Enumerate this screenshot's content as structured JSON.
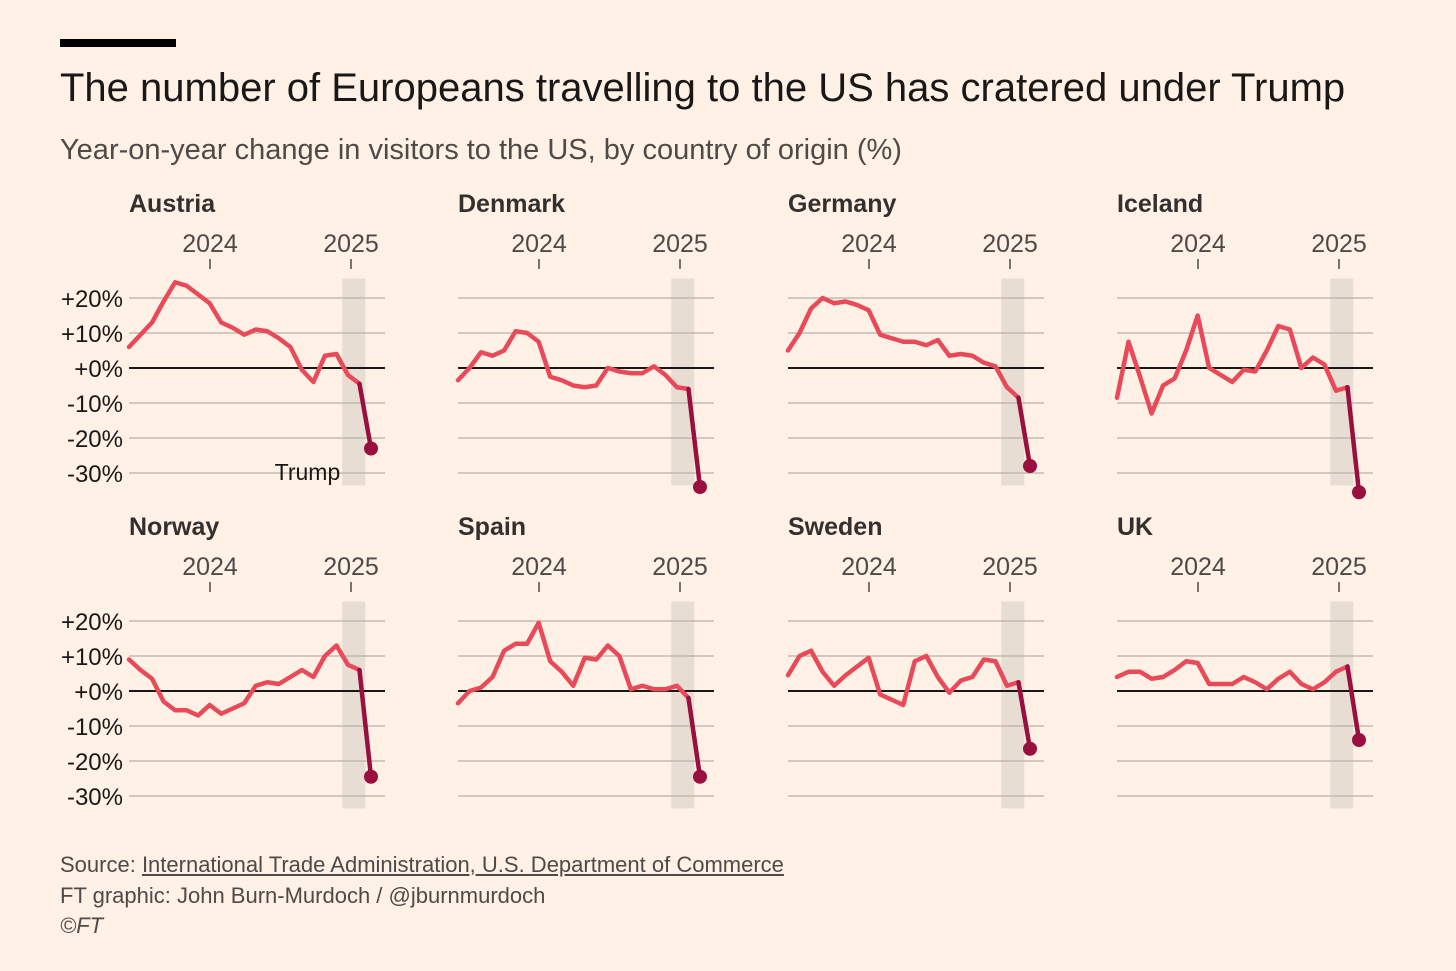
{
  "header": {
    "title": "The number of Europeans travelling to the US has cratered under Trump",
    "subtitle": "Year-on-year change in visitors to the US, by country of origin (%)"
  },
  "footer": {
    "source_prefix": "Source: ",
    "source_link": "International Trade Administration, U.S. Department of Commerce",
    "credit": "FT graphic: John Burn-Murdoch / @jburnmurdoch",
    "copyright": "©FT"
  },
  "colors": {
    "background": "#FFF1E5",
    "line": "#E94A5A",
    "highlight": "#990F3D",
    "shade": "#E8DDD3",
    "grid": "#B9B1AA",
    "zero": "#1A1817"
  },
  "chart_data": {
    "type": "line",
    "ylim": [
      -33,
      25
    ],
    "yticks": [
      20,
      10,
      0,
      -10,
      -20,
      -30
    ],
    "ytick_labels": [
      "+20%",
      "+10%",
      "+0%",
      "-10%",
      "-20%",
      "-30%"
    ],
    "xticks": [
      2024,
      2025
    ],
    "xtick_labels": [
      "2024",
      "2025"
    ],
    "x_start": 2023.5,
    "x_step": 0.0833,
    "shaded_region_x": [
      2025.0417,
      2025.2083
    ],
    "annotation": {
      "text": "Trump",
      "panel": 0
    },
    "panels": [
      {
        "name": "Austria",
        "values": [
          6,
          9.5,
          13,
          19,
          24.5,
          23.5,
          21,
          18.5,
          13,
          11.5,
          9.5,
          11,
          10.5,
          8.5,
          6,
          -0.5,
          -4,
          3.5,
          4,
          -2,
          -4.5,
          -23
        ]
      },
      {
        "name": "Denmark",
        "values": [
          -3.5,
          0,
          4.5,
          3.5,
          5,
          10.5,
          10,
          7.5,
          -2.5,
          -3.5,
          -5,
          -5.5,
          -5,
          0,
          -1,
          -1.5,
          -1.5,
          0.5,
          -2,
          -5.5,
          -6,
          -34
        ]
      },
      {
        "name": "Germany",
        "values": [
          5,
          10,
          17,
          20,
          18.5,
          19,
          18,
          16.5,
          9.5,
          8.5,
          7.5,
          7.5,
          6.5,
          8,
          3.5,
          4,
          3.5,
          1.5,
          0.5,
          -5.5,
          -8.5,
          -28
        ]
      },
      {
        "name": "Iceland",
        "values": [
          -8.5,
          7.5,
          -2.5,
          -13,
          -5,
          -3,
          5,
          15,
          0,
          -2,
          -4,
          -0.5,
          -1,
          5,
          12,
          11,
          0,
          3,
          1,
          -6.5,
          -5.5,
          -35.5
        ]
      },
      {
        "name": "Norway",
        "values": [
          9,
          6,
          3.5,
          -3,
          -5.5,
          -5.5,
          -7,
          -4,
          -6.5,
          -5,
          -3.5,
          1.5,
          2.5,
          2,
          4,
          6,
          4,
          10,
          13,
          7.5,
          6,
          -24.5
        ]
      },
      {
        "name": "Spain",
        "values": [
          -3.5,
          0,
          1,
          4,
          11.5,
          13.5,
          13.5,
          19.5,
          8.5,
          5.5,
          1.5,
          9.5,
          9,
          13,
          10,
          0.5,
          1.5,
          0.5,
          0.5,
          1.5,
          -2,
          -24.5
        ]
      },
      {
        "name": "Sweden",
        "values": [
          4.5,
          10,
          11.5,
          5.5,
          1.5,
          4.5,
          7,
          9.5,
          -1,
          -2.5,
          -4,
          8.5,
          10,
          4,
          -0.5,
          3,
          4,
          9,
          8.5,
          1.5,
          2.5,
          -16.5
        ]
      },
      {
        "name": "UK",
        "values": [
          4,
          5.5,
          5.5,
          3.5,
          4,
          6,
          8.5,
          8,
          2,
          2,
          2,
          4,
          2.5,
          0.5,
          3.5,
          5.5,
          2,
          0.5,
          2.5,
          5.5,
          7,
          -14
        ]
      }
    ]
  }
}
